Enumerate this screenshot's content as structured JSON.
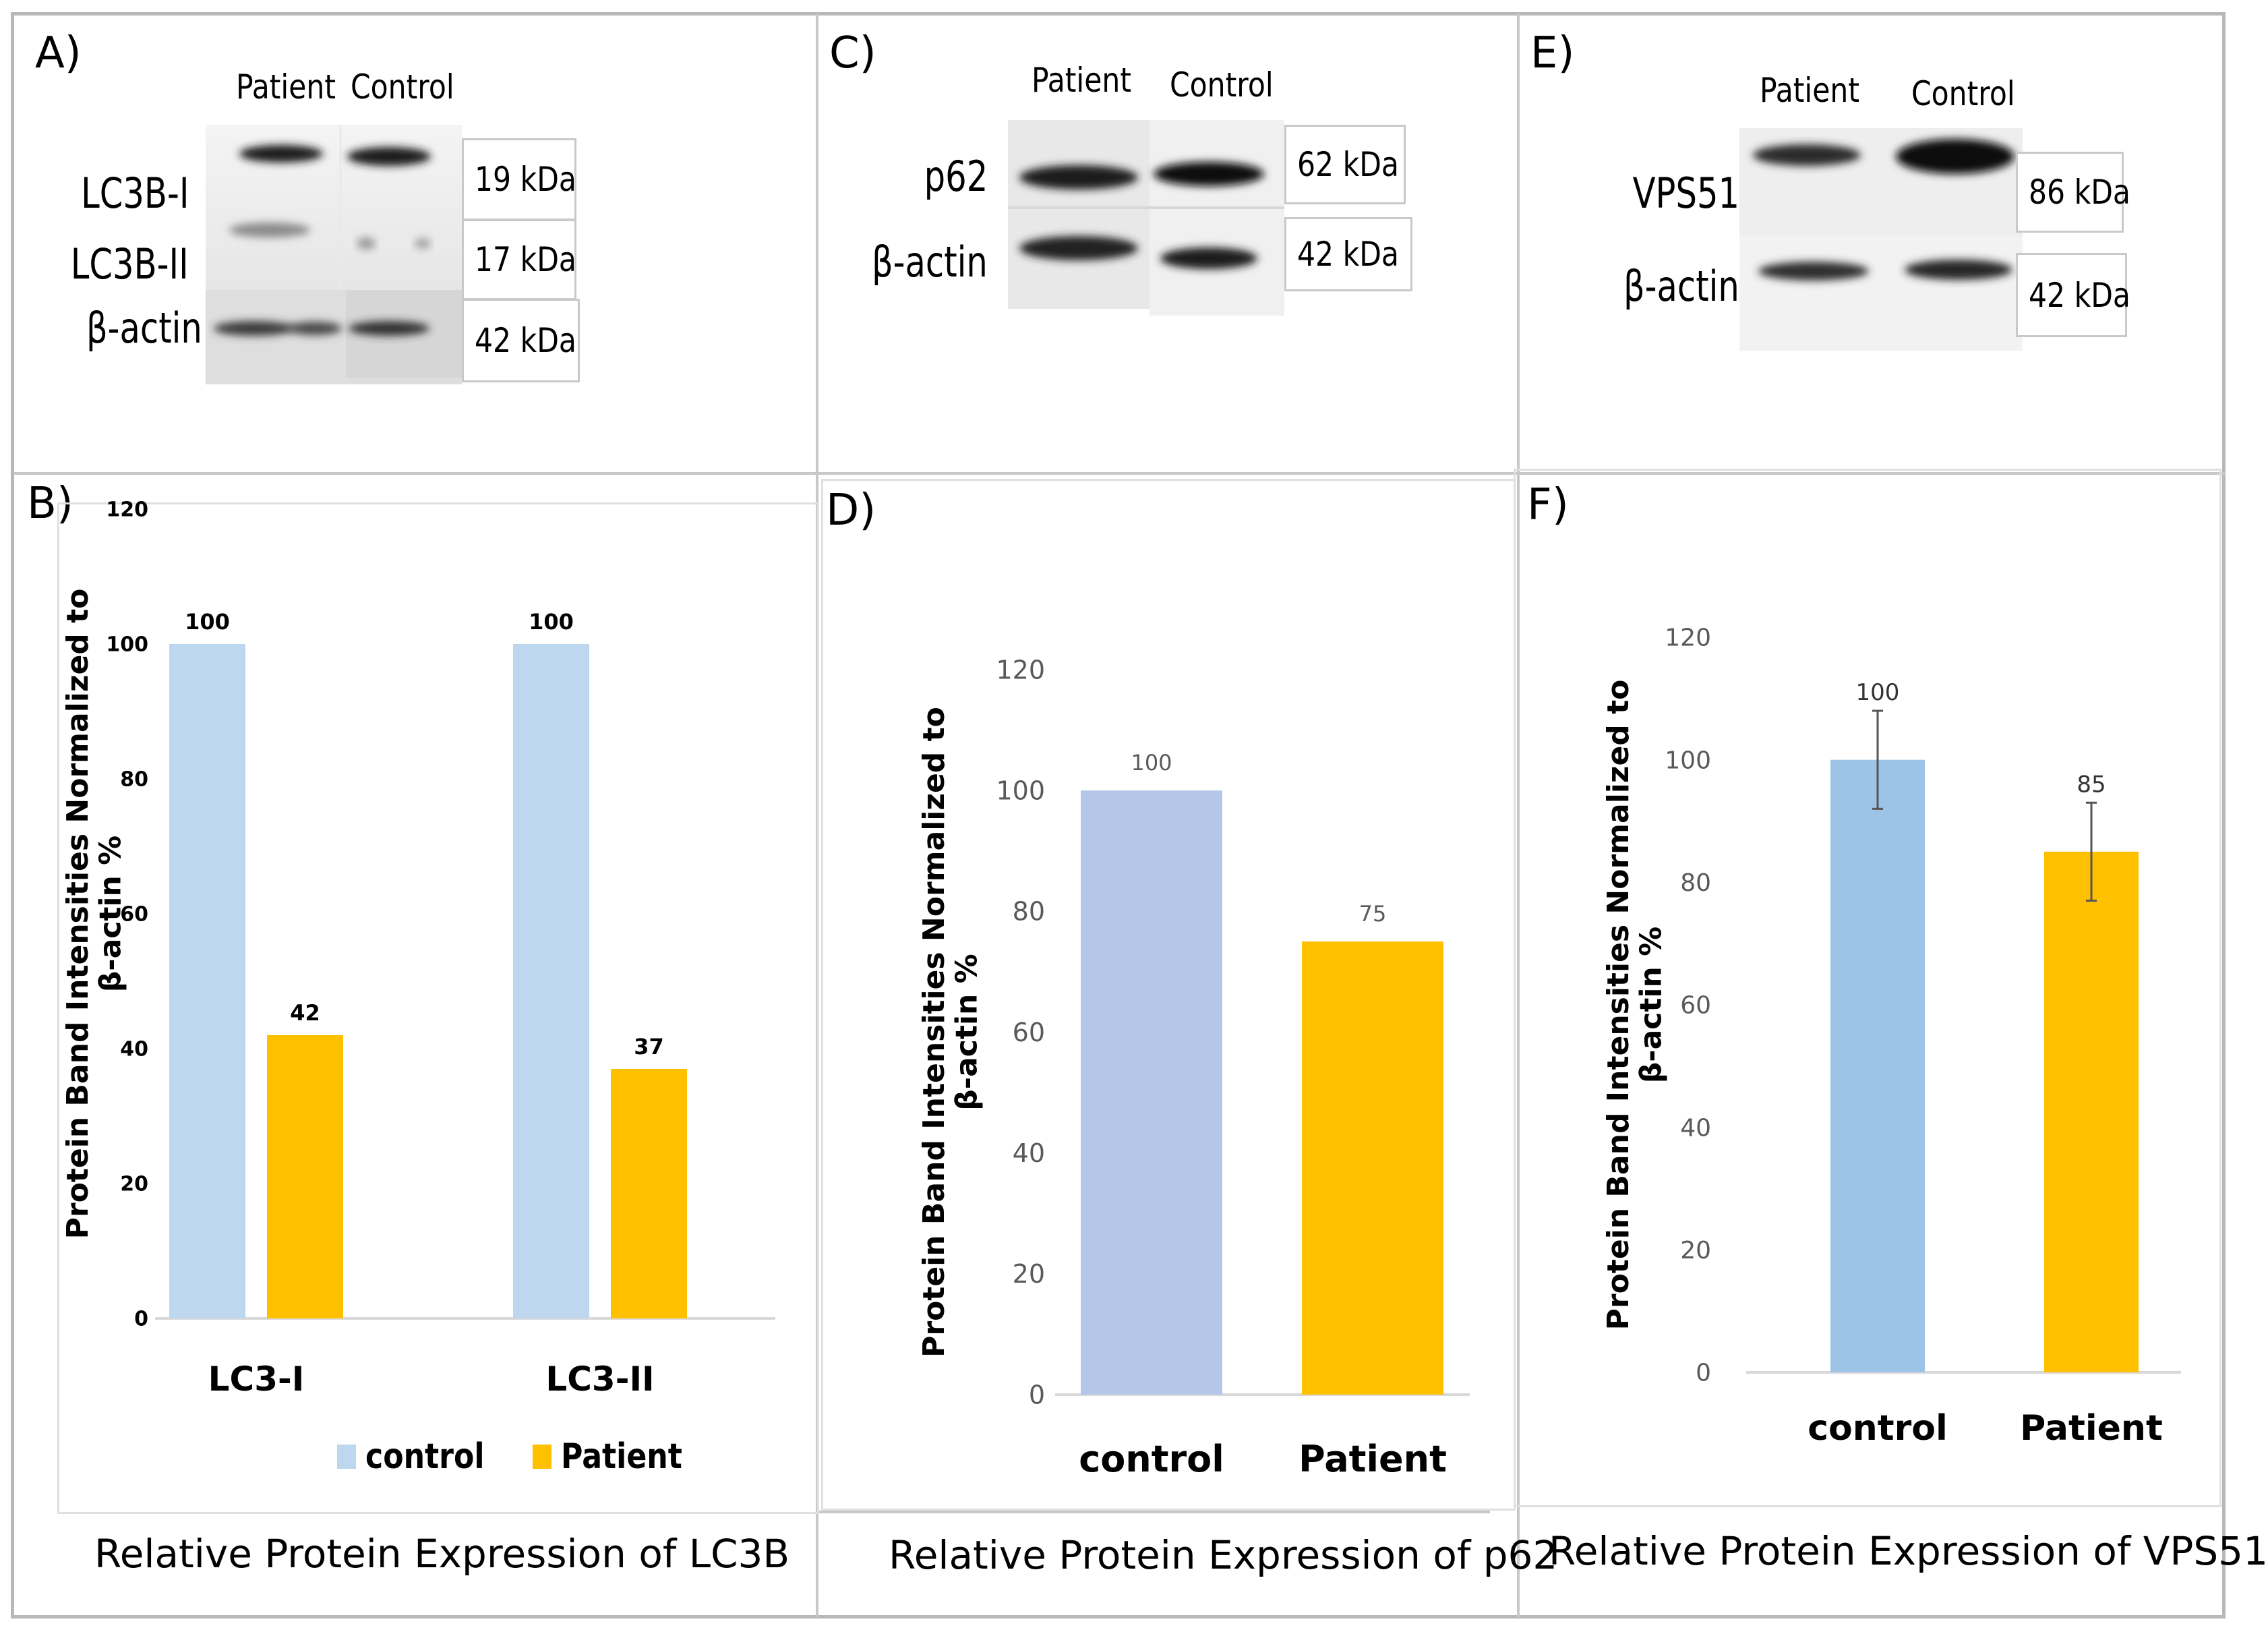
{
  "panels": {
    "A": {
      "letter": "A)",
      "lanes": [
        "Patient",
        "Control"
      ],
      "proteins": [
        "LC3B-I",
        "LC3B-II",
        "β-actin"
      ],
      "kda": [
        "19 kDa",
        "17 kDa",
        "42 kDa"
      ]
    },
    "B": {
      "letter": "B)"
    },
    "C": {
      "letter": "C)",
      "lanes": [
        "Patient",
        "Control"
      ],
      "proteins": [
        "p62",
        "β-actin"
      ],
      "kda": [
        "62 kDa",
        "42 kDa"
      ]
    },
    "D": {
      "letter": "D)"
    },
    "E": {
      "letter": "E)",
      "lanes": [
        "Patient",
        "Control"
      ],
      "proteins": [
        "VPS51",
        "β-actin"
      ],
      "kda": [
        "86 kDa",
        "42 kDa"
      ]
    },
    "F": {
      "letter": "F)"
    }
  },
  "legend": {
    "control": "control",
    "patient": "Patient"
  },
  "captions": {
    "lc3b": "Relative Protein Expression of LC3B",
    "p62": "Relative Protein Expression of p62",
    "vps51": "Relative Protein Expression of VPS51"
  },
  "colors": {
    "control_light": "#bdd7ee",
    "control_d": "#b4c7e7",
    "control_f": "#9dc3e6",
    "patient": "#ffc000",
    "axis": "#d9d9d9",
    "label_grey": "#595959"
  },
  "chart_data": [
    {
      "id": "B",
      "type": "bar",
      "categories": [
        "LC3-I",
        "LC3-II"
      ],
      "series": [
        {
          "name": "control",
          "values": [
            100,
            100
          ]
        },
        {
          "name": "Patient",
          "values": [
            42,
            37
          ]
        }
      ],
      "data_labels": [
        [
          "100",
          "100"
        ],
        [
          "42",
          "37"
        ]
      ],
      "yticks": [
        0,
        20,
        40,
        60,
        80,
        100,
        120
      ],
      "ylim": [
        0,
        120
      ],
      "ylabel": "Protein Band Intensities Normalized to β-actin %",
      "legend": [
        "control",
        "Patient"
      ]
    },
    {
      "id": "D",
      "type": "bar",
      "categories": [
        "control",
        "Patient"
      ],
      "values": [
        100,
        75
      ],
      "data_labels": [
        "100",
        "75"
      ],
      "yticks": [
        0,
        20,
        40,
        60,
        80,
        100,
        120
      ],
      "ylim": [
        0,
        120
      ],
      "ylabel": "Protein Band Intensities Normalized to β-actin %"
    },
    {
      "id": "F",
      "type": "bar",
      "categories": [
        "control",
        "Patient"
      ],
      "values": [
        100,
        85
      ],
      "errors": [
        8,
        8
      ],
      "data_labels": [
        "100",
        "85"
      ],
      "yticks": [
        0,
        20,
        40,
        60,
        80,
        100,
        120
      ],
      "ylim": [
        0,
        120
      ],
      "ylabel": "Protein Band Intensities Normalized to β-actin %"
    }
  ]
}
